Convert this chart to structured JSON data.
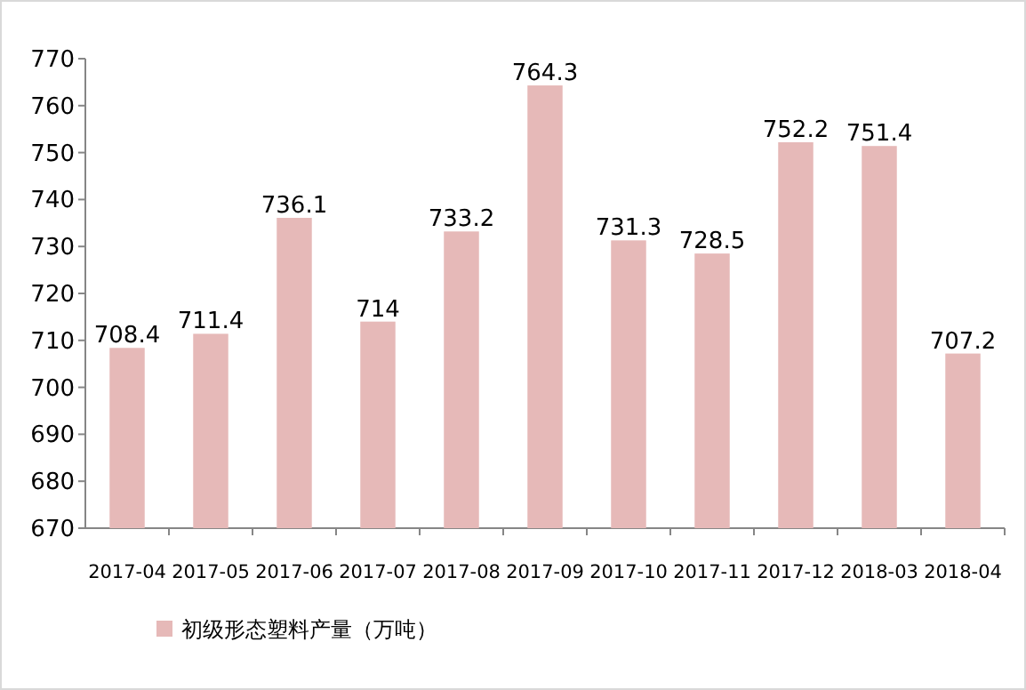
{
  "chart_data": {
    "type": "bar",
    "categories": [
      "2017-04",
      "2017-05",
      "2017-06",
      "2017-07",
      "2017-08",
      "2017-09",
      "2017-10",
      "2017-11",
      "2017-12",
      "2018-03",
      "2018-04"
    ],
    "series": [
      {
        "name": "初级形态塑料产量（万吨）",
        "color": "#e6b9b8",
        "values": [
          708.4,
          711.4,
          736.1,
          714,
          733.2,
          764.3,
          731.3,
          728.5,
          752.2,
          751.4,
          707.2
        ]
      }
    ],
    "ylim": [
      670,
      770
    ],
    "yticks": [
      670,
      680,
      690,
      700,
      710,
      720,
      730,
      740,
      750,
      760,
      770
    ],
    "data_labels": true,
    "legend": "bottom left",
    "grid": false
  }
}
